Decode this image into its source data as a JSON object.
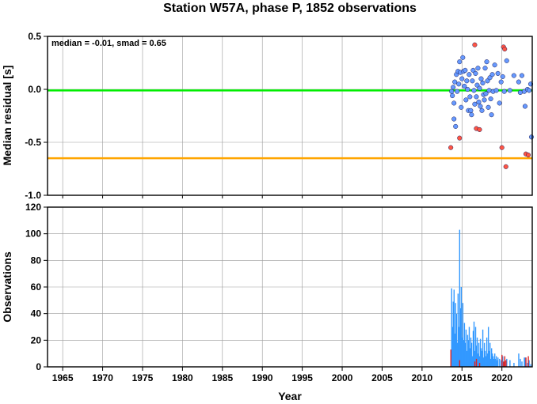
{
  "chart_data": [
    {
      "panel": "top",
      "type": "scatter",
      "title": "Station W57A, phase P, 1852 observations",
      "ylabel": "Median residual [s]",
      "annotation": "median = -0.01, smad = 0.65",
      "xlim": [
        1963.1,
        2023.8
      ],
      "ylim": [
        -1.0,
        0.5
      ],
      "xticks": [
        1965,
        1970,
        1975,
        1980,
        1985,
        1990,
        1995,
        2000,
        2005,
        2010,
        2015,
        2020
      ],
      "yticks": [
        -1.0,
        -0.5,
        0.0,
        0.5
      ],
      "ytick_labels": [
        "-1.0",
        "-0.5",
        "0.0",
        "0.5"
      ],
      "grid": true,
      "reference_lines": [
        {
          "y": -0.01,
          "color": "#00ee00"
        },
        {
          "y": -0.65,
          "color": "#ffa500"
        }
      ],
      "series": [
        {
          "color": "#6699ff",
          "points": [
            [
              2013.7,
              -0.02
            ],
            [
              2013.8,
              -0.06
            ],
            [
              2013.9,
              0.02
            ],
            [
              2014.0,
              -0.28
            ],
            [
              2014.0,
              -0.13
            ],
            [
              2014.1,
              0.07
            ],
            [
              2014.2,
              -0.35
            ],
            [
              2014.3,
              0.14
            ],
            [
              2014.4,
              -0.02
            ],
            [
              2014.5,
              0.17
            ],
            [
              2014.6,
              0.05
            ],
            [
              2014.7,
              0.26
            ],
            [
              2014.8,
              0.16
            ],
            [
              2014.9,
              -0.17
            ],
            [
              2015.0,
              0.1
            ],
            [
              2015.1,
              0.3
            ],
            [
              2015.2,
              0.17
            ],
            [
              2015.3,
              0.03
            ],
            [
              2015.4,
              0.18
            ],
            [
              2015.5,
              -0.1
            ],
            [
              2015.6,
              0.08
            ],
            [
              2015.7,
              0.0
            ],
            [
              2015.8,
              -0.2
            ],
            [
              2015.9,
              0.14
            ],
            [
              2016.0,
              -0.07
            ],
            [
              2016.1,
              -0.2
            ],
            [
              2016.2,
              -0.24
            ],
            [
              2016.3,
              0.08
            ],
            [
              2016.4,
              0.18
            ],
            [
              2016.5,
              -0.01
            ],
            [
              2016.6,
              -0.14
            ],
            [
              2016.7,
              0.15
            ],
            [
              2016.8,
              -0.07
            ],
            [
              2016.9,
              0.04
            ],
            [
              2017.0,
              0.2
            ],
            [
              2017.1,
              -0.12
            ],
            [
              2017.2,
              0.01
            ],
            [
              2017.3,
              -0.16
            ],
            [
              2017.4,
              0.1
            ],
            [
              2017.5,
              -0.2
            ],
            [
              2017.6,
              0.06
            ],
            [
              2017.7,
              -0.05
            ],
            [
              2017.8,
              -0.1
            ],
            [
              2017.9,
              0.2
            ],
            [
              2018.0,
              -0.04
            ],
            [
              2018.1,
              0.26
            ],
            [
              2018.2,
              0.08
            ],
            [
              2018.3,
              -0.17
            ],
            [
              2018.4,
              -0.01
            ],
            [
              2018.5,
              0.11
            ],
            [
              2018.6,
              -0.09
            ],
            [
              2018.7,
              -0.24
            ],
            [
              2018.8,
              0.14
            ],
            [
              2018.9,
              -0.02
            ],
            [
              2019.1,
              0.23
            ],
            [
              2019.3,
              -0.01
            ],
            [
              2019.5,
              0.15
            ],
            [
              2019.7,
              -0.13
            ],
            [
              2019.9,
              0.07
            ],
            [
              2020.1,
              0.12
            ],
            [
              2020.3,
              -0.02
            ],
            [
              2020.6,
              0.27
            ],
            [
              2021.0,
              -0.01
            ],
            [
              2021.5,
              0.13
            ],
            [
              2022.1,
              0.07
            ],
            [
              2022.3,
              -0.03
            ],
            [
              2022.5,
              0.13
            ],
            [
              2022.8,
              -0.02
            ],
            [
              2022.9,
              -0.16
            ],
            [
              2023.2,
              0.0
            ],
            [
              2023.4,
              -0.01
            ],
            [
              2023.6,
              0.05
            ],
            [
              2023.7,
              -0.45
            ]
          ]
        },
        {
          "color": "#ff5544",
          "points": [
            [
              2013.6,
              -0.55
            ],
            [
              2014.7,
              -0.46
            ],
            [
              2016.6,
              0.42
            ],
            [
              2016.8,
              -0.37
            ],
            [
              2017.2,
              -0.38
            ],
            [
              2020.0,
              -0.55
            ],
            [
              2020.2,
              0.4
            ],
            [
              2020.35,
              0.38
            ],
            [
              2020.5,
              -0.73
            ],
            [
              2023.0,
              -0.61
            ],
            [
              2023.3,
              -0.62
            ]
          ]
        }
      ]
    },
    {
      "panel": "bottom",
      "type": "bar",
      "xlabel": "Year",
      "ylabel": "Observations",
      "xlim": [
        1963.1,
        2023.8
      ],
      "ylim": [
        0,
        120
      ],
      "xticks": [
        1965,
        1970,
        1975,
        1980,
        1985,
        1990,
        1995,
        2000,
        2005,
        2010,
        2015,
        2020
      ],
      "yticks": [
        0,
        20,
        40,
        60,
        80,
        100,
        120
      ],
      "grid": true,
      "series": [
        {
          "color": "#3399ff",
          "x": [
            2013.7,
            2013.8,
            2013.9,
            2014.0,
            2014.1,
            2014.2,
            2014.3,
            2014.4,
            2014.5,
            2014.6,
            2014.7,
            2014.8,
            2014.9,
            2015.0,
            2015.1,
            2015.2,
            2015.3,
            2015.4,
            2015.5,
            2015.6,
            2015.7,
            2015.8,
            2015.9,
            2016.0,
            2016.1,
            2016.2,
            2016.3,
            2016.4,
            2016.5,
            2016.6,
            2016.7,
            2016.8,
            2016.9,
            2017.0,
            2017.1,
            2017.2,
            2017.3,
            2017.4,
            2017.5,
            2017.6,
            2017.7,
            2017.8,
            2017.9,
            2018.0,
            2018.1,
            2018.2,
            2018.3,
            2018.4,
            2018.5,
            2018.6,
            2018.7,
            2018.8,
            2018.9,
            2019.0,
            2019.1,
            2019.2,
            2019.3,
            2019.4,
            2019.5,
            2019.7,
            2019.9,
            2020.1,
            2020.3,
            2020.6,
            2021.0,
            2021.5,
            2022.1,
            2022.3,
            2022.5,
            2022.8,
            2022.9,
            2023.2,
            2023.4,
            2023.6
          ],
          "values": [
            59,
            30,
            49,
            58,
            25,
            48,
            40,
            18,
            55,
            30,
            103,
            44,
            60,
            22,
            48,
            20,
            33,
            18,
            28,
            12,
            24,
            20,
            30,
            14,
            22,
            18,
            8,
            27,
            34,
            12,
            30,
            16,
            22,
            10,
            18,
            8,
            21,
            14,
            12,
            28,
            7,
            18,
            12,
            8,
            22,
            10,
            30,
            12,
            18,
            6,
            14,
            10,
            8,
            6,
            10,
            6,
            8,
            5,
            7,
            6,
            5,
            8,
            4,
            6,
            5,
            3,
            10,
            6,
            4,
            7,
            7,
            3,
            5,
            2
          ]
        },
        {
          "color": "#dd2222",
          "x": [
            2013.6,
            2014.7,
            2016.6,
            2016.8,
            2017.2,
            2020.0,
            2020.2,
            2020.35,
            2020.5,
            2023.0,
            2023.3
          ],
          "values": [
            13,
            5,
            4,
            6,
            3,
            9,
            4,
            8,
            5,
            7,
            8
          ]
        }
      ]
    }
  ]
}
